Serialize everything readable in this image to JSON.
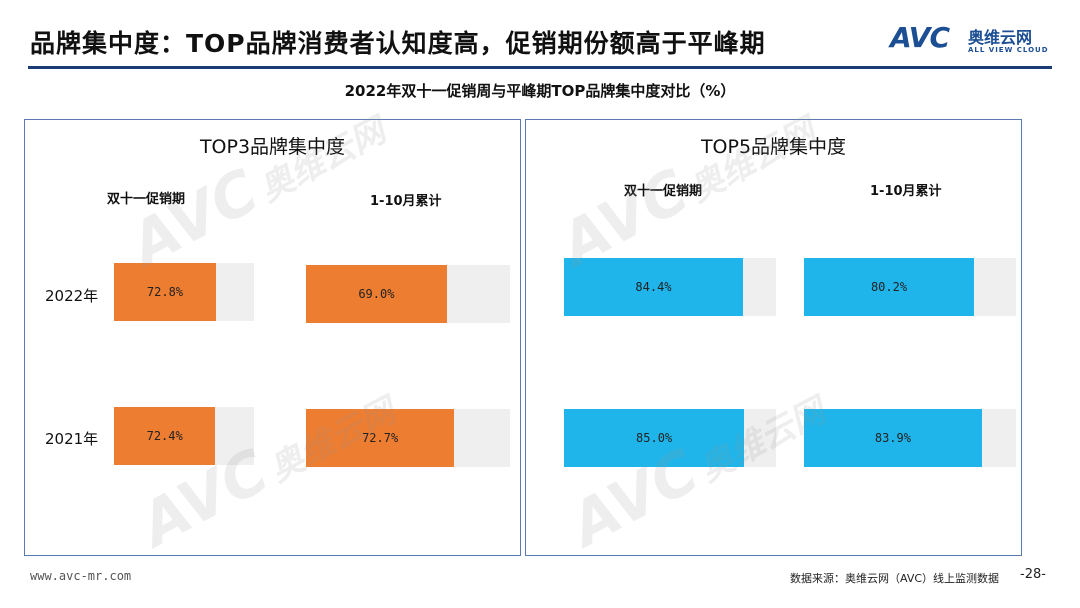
{
  "header": {
    "title": "品牌集中度：TOP品牌消费者认知度高，促销期份额高于平峰期",
    "logo_mark": "AVC",
    "logo_cn": "奥维云网",
    "logo_en": "ALL VIEW CLOUD"
  },
  "watermark": {
    "mark": "AVC",
    "cn": "奥维云网",
    "en": "ALL VIEW CLOUD"
  },
  "footer": {
    "website": "www.avc-mr.com",
    "source": "数据来源：奥维云网（AVC）线上监测数据",
    "page": "-28-"
  },
  "colors": {
    "top3": "#ed7d31",
    "top5": "#1fb5ea",
    "track": "#efefef",
    "rule": "#1c3c78"
  },
  "chart_data": {
    "type": "bar",
    "title": "2022年双十一促销周与平峰期TOP品牌集中度对比（%）",
    "unit": "%",
    "xlim": [
      0,
      100
    ],
    "panels": [
      {
        "title": "TOP3品牌集中度",
        "color": "#ed7d31",
        "columns": [
          "双十一促销期",
          "1-10月累计"
        ],
        "rows": [
          {
            "label": "2022年",
            "values": [
              72.8,
              69.0
            ],
            "labels": [
              "72.8%",
              "69.0%"
            ]
          },
          {
            "label": "2021年",
            "values": [
              72.4,
              72.7
            ],
            "labels": [
              "72.4%",
              "72.7%"
            ]
          }
        ]
      },
      {
        "title": "TOP5品牌集中度",
        "color": "#1fb5ea",
        "columns": [
          "双十一促销期",
          "1-10月累计"
        ],
        "rows": [
          {
            "label": "",
            "values": [
              84.4,
              80.2
            ],
            "labels": [
              "84.4%",
              "80.2%"
            ]
          },
          {
            "label": "",
            "values": [
              85.0,
              83.9
            ],
            "labels": [
              "85.0%",
              "83.9%"
            ]
          }
        ]
      }
    ]
  }
}
